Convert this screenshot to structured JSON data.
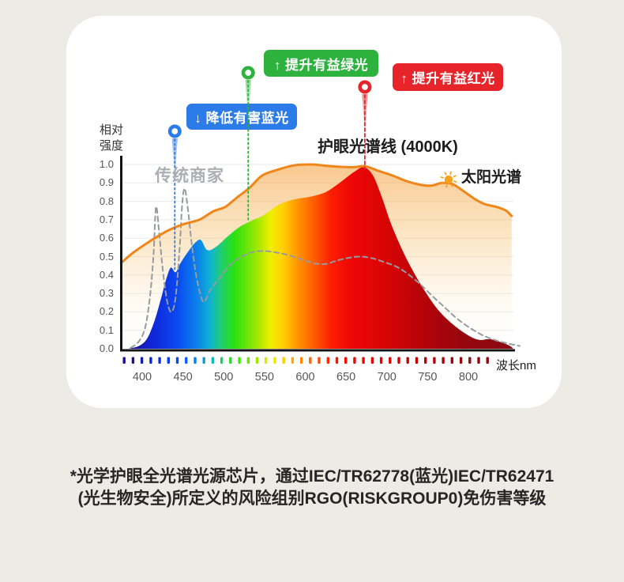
{
  "page": {
    "background": "#edebe5",
    "card_background": "#ffffff"
  },
  "callouts": {
    "blue": {
      "label": "↓ 降低有害蓝光",
      "color": "#2b7be8"
    },
    "green": {
      "label": "↑ 提升有益绿光",
      "color": "#2cb23d"
    },
    "red": {
      "label": "↑ 提升有益红光",
      "color": "#e6242a"
    }
  },
  "labels": {
    "y_axis_title_line1": "相对",
    "y_axis_title_line2": "强度",
    "x_axis_unit": "波长nm",
    "series_eye_title": "护眼光谱线 (4000K)",
    "series_solar": "太阳光谱",
    "series_traditional": "传统商家"
  },
  "footer": {
    "line1": "*光学护眼全光谱光源芯片，通过IEC/TR62778(蓝光)IEC/TR62471",
    "line2": "(光生物安全)所定义的风险组别RGO(RISKGROUP0)免伤害等级"
  },
  "chart_data": {
    "type": "area",
    "title": "护眼光谱线 (4000K)",
    "xlabel": "波长nm",
    "ylabel": "相对强度",
    "xlim": [
      375,
      860
    ],
    "ylim": [
      0,
      1.0
    ],
    "grid": "horizontal",
    "legend_position": "inline-annotations",
    "x_ticks": [
      400,
      450,
      500,
      550,
      600,
      650,
      700,
      750,
      800
    ],
    "y_tick_labels": [
      "1.0",
      "0.9",
      "0.8",
      "0.7",
      "0.6",
      "0.5",
      "0.4",
      "0.3",
      "0.2",
      "0.1",
      "0.0"
    ],
    "series": [
      {
        "name": "护眼光谱线(4000K)",
        "style": "rainbow-area",
        "points": [
          [
            383,
            0
          ],
          [
            396,
            0.015
          ],
          [
            406,
            0.055
          ],
          [
            415,
            0.15
          ],
          [
            423,
            0.27
          ],
          [
            429,
            0.37
          ],
          [
            435,
            0.44
          ],
          [
            441,
            0.415
          ],
          [
            447,
            0.465
          ],
          [
            456,
            0.525
          ],
          [
            465,
            0.575
          ],
          [
            472,
            0.59
          ],
          [
            480,
            0.535
          ],
          [
            491,
            0.555
          ],
          [
            505,
            0.61
          ],
          [
            519,
            0.66
          ],
          [
            534,
            0.695
          ],
          [
            549,
            0.725
          ],
          [
            567,
            0.78
          ],
          [
            586,
            0.81
          ],
          [
            606,
            0.825
          ],
          [
            625,
            0.85
          ],
          [
            642,
            0.9
          ],
          [
            660,
            0.96
          ],
          [
            672,
            0.985
          ],
          [
            683,
            0.94
          ],
          [
            694,
            0.82
          ],
          [
            705,
            0.68
          ],
          [
            718,
            0.545
          ],
          [
            731,
            0.43
          ],
          [
            747,
            0.31
          ],
          [
            764,
            0.205
          ],
          [
            783,
            0.125
          ],
          [
            800,
            0.072
          ],
          [
            813,
            0.048
          ],
          [
            826,
            0.052
          ],
          [
            840,
            0.035
          ],
          [
            851,
            0.015
          ],
          [
            855,
            0
          ]
        ]
      },
      {
        "name": "太阳光谱",
        "style": "line-with-soft-area",
        "color": "#f08519",
        "points": [
          [
            374,
            0.465
          ],
          [
            390,
            0.525
          ],
          [
            410,
            0.585
          ],
          [
            431,
            0.64
          ],
          [
            450,
            0.675
          ],
          [
            470,
            0.7
          ],
          [
            487,
            0.745
          ],
          [
            502,
            0.77
          ],
          [
            516,
            0.82
          ],
          [
            532,
            0.875
          ],
          [
            547,
            0.94
          ],
          [
            565,
            0.97
          ],
          [
            586,
            0.995
          ],
          [
            608,
            1.0
          ],
          [
            632,
            0.99
          ],
          [
            657,
            0.985
          ],
          [
            673,
            0.99
          ],
          [
            690,
            0.965
          ],
          [
            707,
            0.94
          ],
          [
            724,
            0.91
          ],
          [
            741,
            0.89
          ],
          [
            754,
            0.885
          ],
          [
            768,
            0.9
          ],
          [
            780,
            0.895
          ],
          [
            791,
            0.865
          ],
          [
            807,
            0.815
          ],
          [
            820,
            0.785
          ],
          [
            834,
            0.77
          ],
          [
            846,
            0.75
          ],
          [
            853,
            0.72
          ]
        ]
      },
      {
        "name": "传统商家",
        "style": "dashed-line",
        "color": "#959ba1",
        "points": [
          [
            386,
            0.005
          ],
          [
            396,
            0.04
          ],
          [
            404,
            0.12
          ],
          [
            410,
            0.3
          ],
          [
            414,
            0.52
          ],
          [
            417,
            0.77
          ],
          [
            421,
            0.62
          ],
          [
            426,
            0.4
          ],
          [
            431,
            0.25
          ],
          [
            436,
            0.2
          ],
          [
            441,
            0.28
          ],
          [
            446,
            0.55
          ],
          [
            449,
            0.78
          ],
          [
            452,
            0.87
          ],
          [
            456,
            0.76
          ],
          [
            461,
            0.56
          ],
          [
            467,
            0.38
          ],
          [
            475,
            0.255
          ],
          [
            483,
            0.315
          ],
          [
            495,
            0.385
          ],
          [
            508,
            0.455
          ],
          [
            522,
            0.5
          ],
          [
            536,
            0.525
          ],
          [
            551,
            0.53
          ],
          [
            567,
            0.52
          ],
          [
            582,
            0.505
          ],
          [
            599,
            0.48
          ],
          [
            613,
            0.462
          ],
          [
            625,
            0.46
          ],
          [
            640,
            0.48
          ],
          [
            655,
            0.495
          ],
          [
            669,
            0.5
          ],
          [
            683,
            0.49
          ],
          [
            697,
            0.47
          ],
          [
            712,
            0.445
          ],
          [
            726,
            0.405
          ],
          [
            741,
            0.35
          ],
          [
            756,
            0.285
          ],
          [
            772,
            0.22
          ],
          [
            787,
            0.16
          ],
          [
            803,
            0.11
          ],
          [
            818,
            0.072
          ],
          [
            834,
            0.045
          ],
          [
            849,
            0.028
          ],
          [
            863,
            0.015
          ]
        ]
      }
    ],
    "markers": [
      {
        "name": "blue-pin",
        "color": "#2b7be8",
        "nm": 440,
        "points_to_value": 0.44
      },
      {
        "name": "green-pin",
        "color": "#2cb23d",
        "nm": 530,
        "points_to_value": 0.7
      },
      {
        "name": "red-pin",
        "color": "#e6242a",
        "nm": 673,
        "points_to_value": 0.985
      }
    ],
    "spectrum_gradient_stops": [
      [
        385,
        "#19108f"
      ],
      [
        412,
        "#1125d8"
      ],
      [
        443,
        "#0a49f0"
      ],
      [
        468,
        "#0b84ea"
      ],
      [
        484,
        "#0fb4d2"
      ],
      [
        497,
        "#1fce6e"
      ],
      [
        513,
        "#2ae112"
      ],
      [
        540,
        "#9ae800"
      ],
      [
        557,
        "#eeee00"
      ],
      [
        572,
        "#ffd200"
      ],
      [
        591,
        "#ff9400"
      ],
      [
        610,
        "#ff5f00"
      ],
      [
        632,
        "#fb1d00"
      ],
      [
        656,
        "#ee0707"
      ],
      [
        700,
        "#d80404"
      ],
      [
        745,
        "#b40309"
      ],
      [
        792,
        "#97060d"
      ],
      [
        855,
        "#8c0a12"
      ]
    ],
    "wavelength_tick_strip": {
      "count": 42,
      "from_nm": 378,
      "to_nm": 823
    },
    "sun_icon_color": "#f6a21d"
  }
}
